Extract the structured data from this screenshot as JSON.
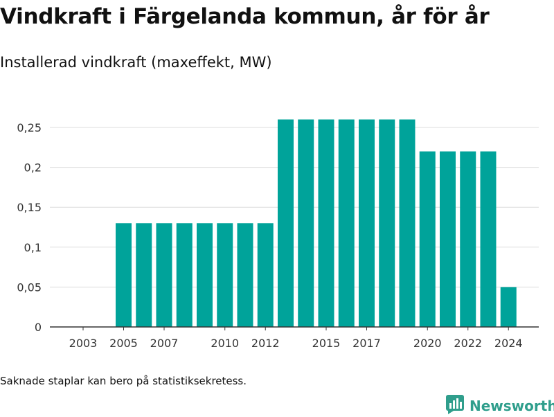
{
  "title": "Vindkraft i Färgelanda kommun, år för år",
  "subtitle": "Installerad vindkraft (maxeffekt, MW)",
  "footnote": "Saknade staplar kan bero på statistiksekretess.",
  "brand": {
    "name": "Newsworthy",
    "icon": "newsworthy-logo-icon"
  },
  "colors": {
    "bar": "#00a39a",
    "brand": "#2f9e8c",
    "grid": "#dddddd",
    "axis": "#333333"
  },
  "chart_data": {
    "type": "bar",
    "categories": [
      2002,
      2003,
      2004,
      2005,
      2006,
      2007,
      2008,
      2009,
      2010,
      2011,
      2012,
      2013,
      2014,
      2015,
      2016,
      2017,
      2018,
      2019,
      2020,
      2021,
      2022,
      2023,
      2024
    ],
    "values": [
      null,
      null,
      null,
      0.13,
      0.13,
      0.13,
      0.13,
      0.13,
      0.13,
      0.13,
      0.13,
      0.26,
      0.26,
      0.26,
      0.26,
      0.26,
      0.26,
      0.26,
      0.22,
      0.22,
      0.22,
      0.22,
      0.05
    ],
    "x_tick_labels": [
      "2003",
      "2005",
      "2007",
      "2010",
      "2012",
      "2015",
      "2017",
      "2020",
      "2022",
      "2024"
    ],
    "y_tick_labels": [
      "0",
      "0,05",
      "0,1",
      "0,15",
      "0,2",
      "0,25"
    ],
    "y_ticks": [
      0,
      0.05,
      0.1,
      0.15,
      0.2,
      0.25
    ],
    "ylim": [
      0,
      0.27
    ],
    "grid": true
  }
}
